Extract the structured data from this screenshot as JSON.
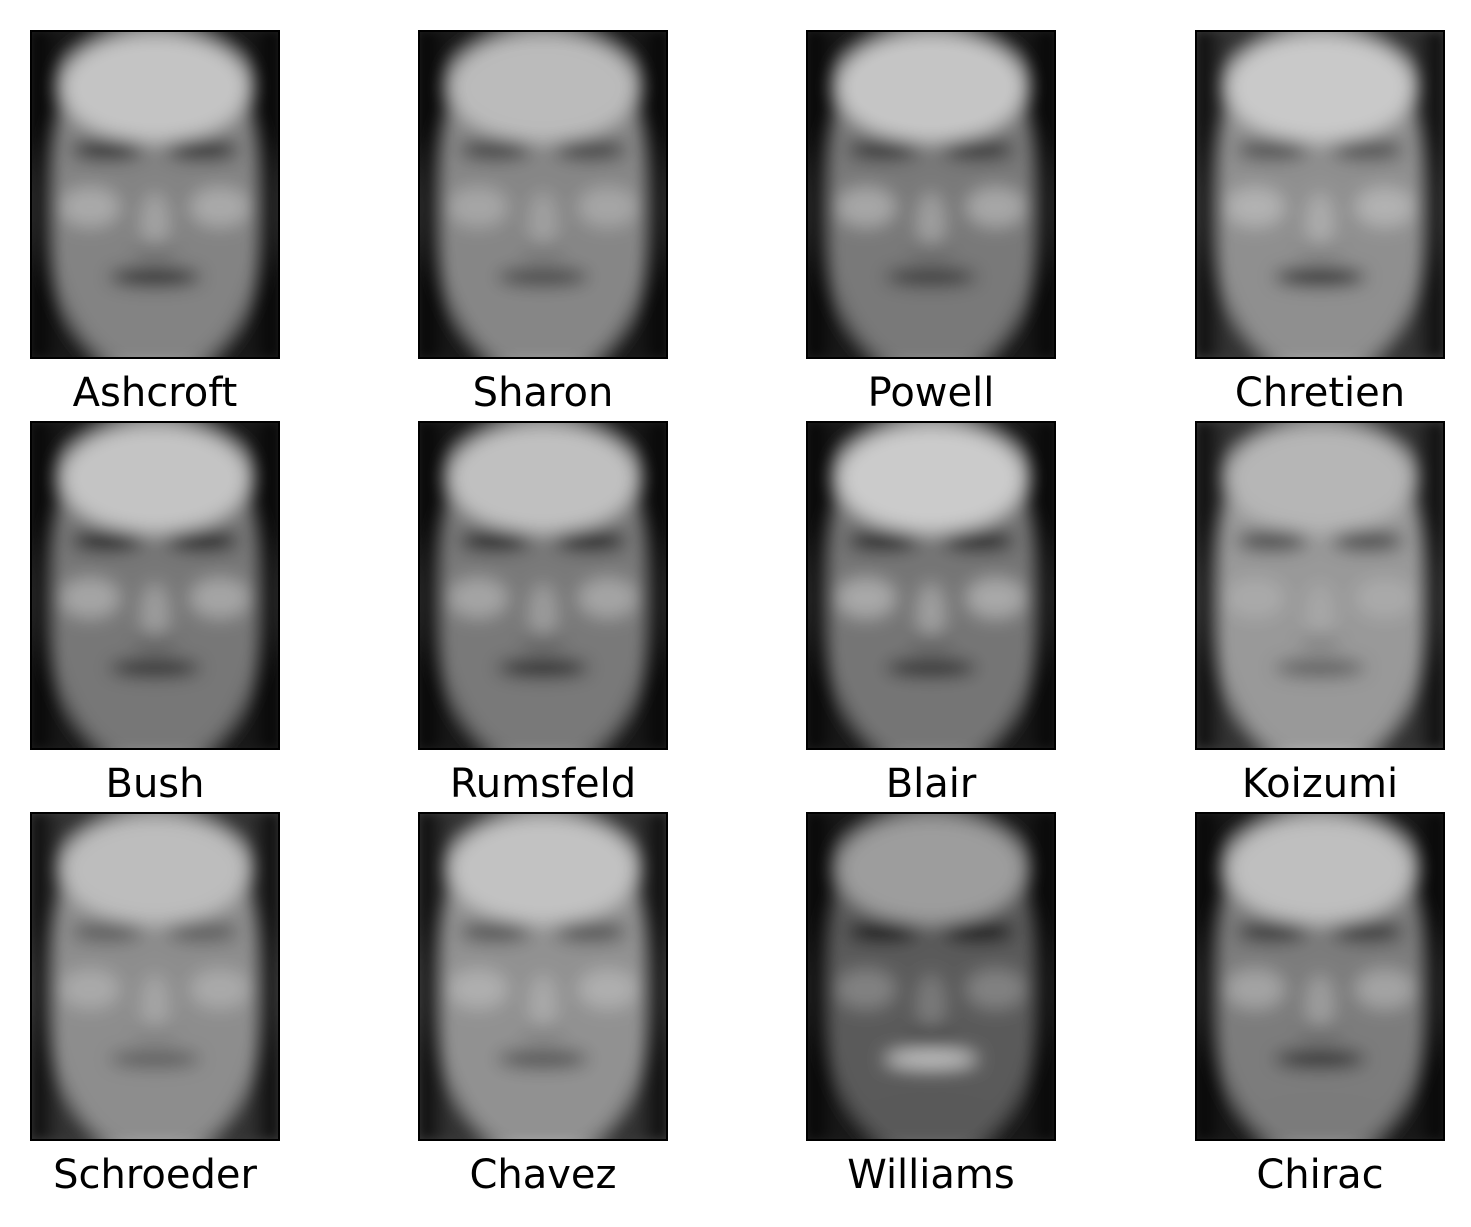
{
  "figure": {
    "faces": [
      {
        "label": "Ashcroft",
        "tone": "mid",
        "skin": "#9a9a9a",
        "brow": "#2e2e2e",
        "mouth": "#1e1e1e",
        "forehead": "#e6e6e6"
      },
      {
        "label": "Sharon",
        "tone": "mid",
        "skin": "#9e9e9e",
        "brow": "#4a4a4a",
        "mouth": "#4a4a4a",
        "forehead": "#dcdcdc"
      },
      {
        "label": "Powell",
        "tone": "mid",
        "skin": "#8e8e8e",
        "brow": "#3a3a3a",
        "mouth": "#3a3a3a",
        "forehead": "#e8e8e8"
      },
      {
        "label": "Chretien",
        "tone": "light",
        "skin": "#a8a8a8",
        "brow": "#5a5a5a",
        "mouth": "#151515",
        "forehead": "#ececec"
      },
      {
        "label": "Bush",
        "tone": "mid",
        "skin": "#8c8c8c",
        "brow": "#141414",
        "mouth": "#2a2a2a",
        "forehead": "#e6e6e6"
      },
      {
        "label": "Rumsfeld",
        "tone": "mid",
        "skin": "#8e8e8e",
        "brow": "#141414",
        "mouth": "#1e1e1e",
        "forehead": "#e2e2e2"
      },
      {
        "label": "Blair",
        "tone": "mid",
        "skin": "#8a8a8a",
        "brow": "#1e1e1e",
        "mouth": "#2a2a2a",
        "forehead": "#eeeeee"
      },
      {
        "label": "Koizumi",
        "tone": "light",
        "skin": "#b4b4b4",
        "brow": "#505050",
        "mouth": "#6a6a6a",
        "forehead": "#d6d6d6"
      },
      {
        "label": "Schroeder",
        "tone": "light",
        "skin": "#a6a6a6",
        "brow": "#6a6a6a",
        "mouth": "#6a6a6a",
        "forehead": "#dedede"
      },
      {
        "label": "Chavez",
        "tone": "light",
        "skin": "#aaaaaa",
        "brow": "#5e5e5e",
        "mouth": "#5a5a5a",
        "forehead": "#e4e4e4"
      },
      {
        "label": "Williams",
        "tone": "dark",
        "skin": "#6a6a6a",
        "brow": "#0e0e0e",
        "mouth": "#e6e6e6",
        "forehead": "#b8b8b8"
      },
      {
        "label": "Chirac",
        "tone": "mid",
        "skin": "#929292",
        "brow": "#3a3a3a",
        "mouth": "#2a2a2a",
        "forehead": "#e0e0e0"
      }
    ]
  }
}
